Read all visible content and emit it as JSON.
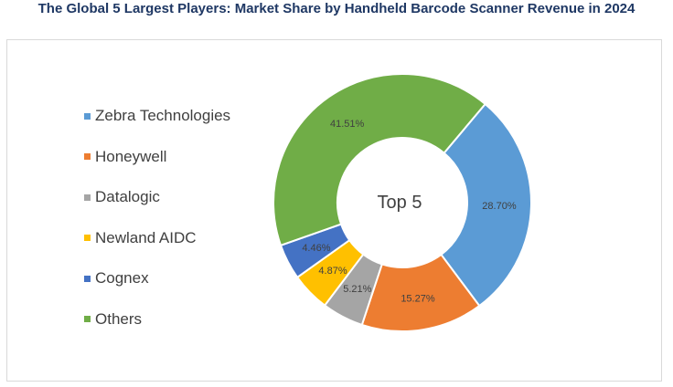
{
  "title": "The Global 5 Largest Players: Market Share by Handheld Barcode Scanner Revenue in 2024",
  "chart_data": {
    "type": "pie",
    "subtype": "donut",
    "center_label": "Top 5",
    "legend_position": "left",
    "slices": [
      {
        "name": "Zebra Technologies",
        "value": 28.7,
        "label": "28.70%",
        "color": "#5b9bd5"
      },
      {
        "name": "Honeywell",
        "value": 15.27,
        "label": "15.27%",
        "color": "#ed7d31"
      },
      {
        "name": "Datalogic",
        "value": 5.21,
        "label": "5.21%",
        "color": "#a5a5a5"
      },
      {
        "name": "Newland AIDC",
        "value": 4.87,
        "label": "4.87%",
        "color": "#ffc000"
      },
      {
        "name": "Cognex",
        "value": 4.46,
        "label": "4.46%",
        "color": "#4472c4"
      },
      {
        "name": "Others",
        "value": 41.51,
        "label": "41.51%",
        "color": "#70ad47"
      }
    ]
  }
}
